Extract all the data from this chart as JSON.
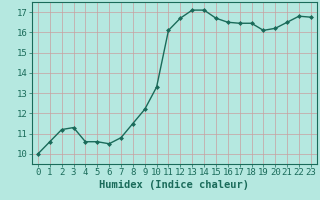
{
  "x": [
    0,
    1,
    2,
    3,
    4,
    5,
    6,
    7,
    8,
    9,
    10,
    11,
    12,
    13,
    14,
    15,
    16,
    17,
    18,
    19,
    20,
    21,
    22,
    23
  ],
  "y": [
    10.0,
    10.6,
    11.2,
    11.3,
    10.6,
    10.6,
    10.5,
    10.8,
    11.5,
    12.2,
    13.3,
    16.1,
    16.7,
    17.1,
    17.1,
    16.7,
    16.5,
    16.45,
    16.45,
    16.1,
    16.2,
    16.5,
    16.8,
    16.75
  ],
  "line_color": "#1a6b5a",
  "marker": "D",
  "marker_size": 2.0,
  "bg_color": "#b5e8e0",
  "grid_major_color": "#c8a0a0",
  "grid_minor_color": "#d8c0c0",
  "xlabel": "Humidex (Indice chaleur)",
  "xlabel_fontsize": 7.5,
  "xlabel_color": "#1a6b5a",
  "tick_color": "#1a6b5a",
  "ylim": [
    9.5,
    17.5
  ],
  "xlim": [
    -0.5,
    23.5
  ],
  "yticks": [
    10,
    11,
    12,
    13,
    14,
    15,
    16,
    17
  ],
  "xticks": [
    0,
    1,
    2,
    3,
    4,
    5,
    6,
    7,
    8,
    9,
    10,
    11,
    12,
    13,
    14,
    15,
    16,
    17,
    18,
    19,
    20,
    21,
    22,
    23
  ],
  "tick_fontsize": 6.5,
  "line_width": 1.0
}
